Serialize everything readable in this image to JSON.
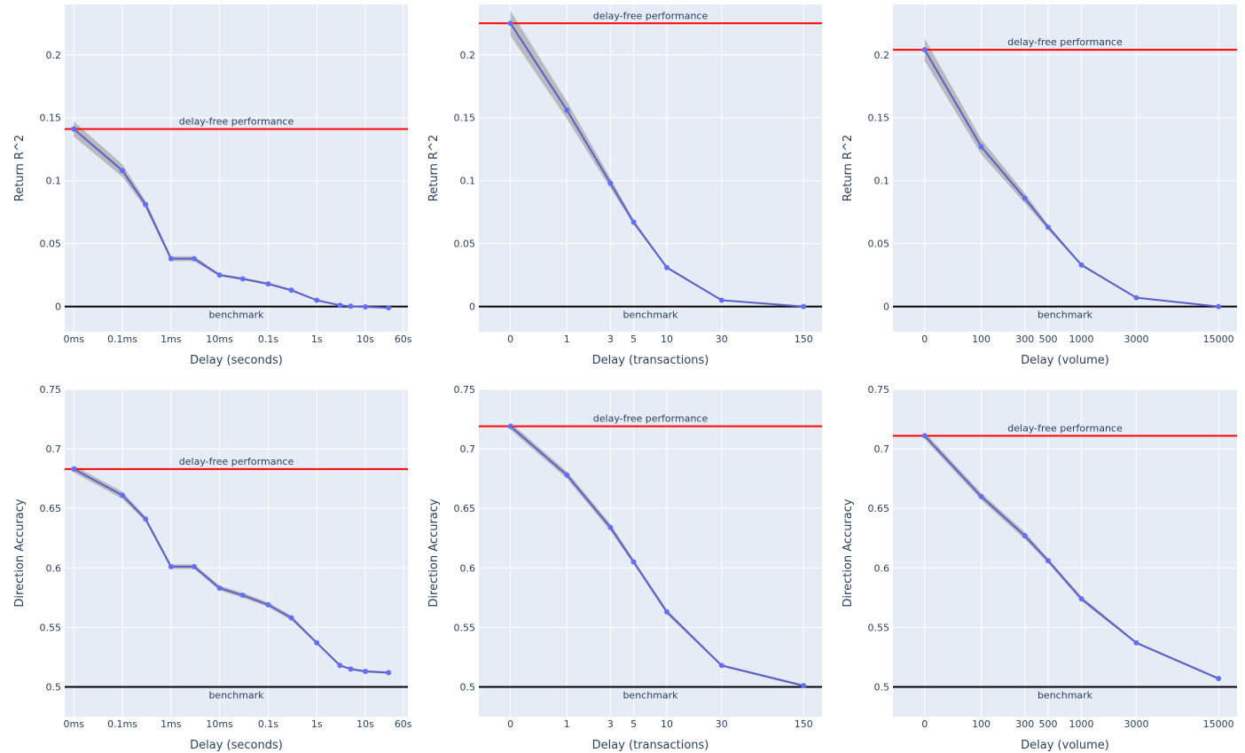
{
  "figure": {
    "plot_bg": "#e5ecf6",
    "grid_color": "#ffffff",
    "line_color": "#5b5fc7",
    "marker_color": "#636efa",
    "band_color": "#9a9a9a",
    "delay_free_color": "#ff0000",
    "benchmark_color": "#000000",
    "text_color": "#2a3f5f"
  },
  "chart_data": [
    {
      "id": "r2-seconds",
      "type": "line",
      "xlabel": "Delay (seconds)",
      "ylabel": "Return R^2",
      "xscale": {
        "kind": "log",
        "offset": 0,
        "zero_as": 1e-05
      },
      "xlim": [
        6.5e-06,
        75
      ],
      "ylim": [
        -0.02,
        0.24
      ],
      "grid": true,
      "xticks": [
        {
          "value": 0,
          "label": "0ms"
        },
        {
          "value": 0.0001,
          "label": "0.1ms"
        },
        {
          "value": 0.001,
          "label": "1ms"
        },
        {
          "value": 0.01,
          "label": "10ms"
        },
        {
          "value": 0.1,
          "label": "0.1s"
        },
        {
          "value": 1,
          "label": "1s"
        },
        {
          "value": 10,
          "label": "10s"
        },
        {
          "value": 60,
          "label": "60s"
        }
      ],
      "yticks": [
        {
          "value": 0,
          "label": "0"
        },
        {
          "value": 0.05,
          "label": "0.05"
        },
        {
          "value": 0.1,
          "label": "0.1"
        },
        {
          "value": 0.15,
          "label": "0.15"
        },
        {
          "value": 0.2,
          "label": "0.2"
        }
      ],
      "x": [
        0,
        0.0001,
        0.0003,
        0.001,
        0.003,
        0.01,
        0.03,
        0.1,
        0.3,
        1,
        3,
        5,
        10,
        30
      ],
      "y": [
        0.141,
        0.108,
        0.081,
        0.038,
        0.038,
        0.025,
        0.022,
        0.018,
        0.013,
        0.005,
        0.001,
        0.0003,
        -0.0003,
        -0.001
      ],
      "band": [
        0.006,
        0.005,
        0.003,
        0.002,
        0.002,
        0.001,
        0.001,
        0.001,
        0.001,
        0.0005,
        0.0005,
        0.0005,
        0.0005,
        0.0005
      ],
      "delay_free": {
        "value": 0.141,
        "label": "delay-free performance"
      },
      "benchmark": {
        "value": 0,
        "label": "benchmark"
      }
    },
    {
      "id": "r2-transactions",
      "type": "line",
      "xlabel": "Delay (transactions)",
      "ylabel": "Return R^2",
      "xscale": {
        "kind": "log",
        "offset": 0.5
      },
      "xlim": [
        -0.23,
        215
      ],
      "ylim": [
        -0.02,
        0.24
      ],
      "grid": true,
      "xticks": [
        {
          "value": 0,
          "label": "0"
        },
        {
          "value": 1,
          "label": "1"
        },
        {
          "value": 3,
          "label": "3"
        },
        {
          "value": 5,
          "label": "5"
        },
        {
          "value": 10,
          "label": "10"
        },
        {
          "value": 30,
          "label": "30"
        },
        {
          "value": 150,
          "label": "150"
        }
      ],
      "yticks": [
        {
          "value": 0,
          "label": "0"
        },
        {
          "value": 0.05,
          "label": "0.05"
        },
        {
          "value": 0.1,
          "label": "0.1"
        },
        {
          "value": 0.15,
          "label": "0.15"
        },
        {
          "value": 0.2,
          "label": "0.2"
        }
      ],
      "x": [
        0,
        1,
        3,
        5,
        10,
        30,
        150
      ],
      "y": [
        0.225,
        0.156,
        0.098,
        0.067,
        0.031,
        0.005,
        0.0
      ],
      "band": [
        0.01,
        0.007,
        0.004,
        0.002,
        0.001,
        0.0005,
        0.0003
      ],
      "delay_free": {
        "value": 0.225,
        "label": "delay-free performance"
      },
      "benchmark": {
        "value": 0,
        "label": "benchmark"
      }
    },
    {
      "id": "r2-volume",
      "type": "line",
      "xlabel": "Delay (volume)",
      "ylabel": "Return R^2",
      "xscale": {
        "kind": "log",
        "offset": 50
      },
      "xlim": [
        -23,
        21500
      ],
      "ylim": [
        -0.02,
        0.24
      ],
      "grid": true,
      "xticks": [
        {
          "value": 0,
          "label": "0"
        },
        {
          "value": 100,
          "label": "100"
        },
        {
          "value": 300,
          "label": "300"
        },
        {
          "value": 500,
          "label": "500"
        },
        {
          "value": 1000,
          "label": "1000"
        },
        {
          "value": 3000,
          "label": "3000"
        },
        {
          "value": 15000,
          "label": "15000"
        }
      ],
      "yticks": [
        {
          "value": 0,
          "label": "0"
        },
        {
          "value": 0.05,
          "label": "0.05"
        },
        {
          "value": 0.1,
          "label": "0.1"
        },
        {
          "value": 0.15,
          "label": "0.15"
        },
        {
          "value": 0.2,
          "label": "0.2"
        }
      ],
      "x": [
        0,
        100,
        300,
        500,
        1000,
        3000,
        15000
      ],
      "y": [
        0.204,
        0.127,
        0.086,
        0.063,
        0.033,
        0.007,
        0.0
      ],
      "band": [
        0.009,
        0.006,
        0.004,
        0.002,
        0.001,
        0.0005,
        0.0003
      ],
      "delay_free": {
        "value": 0.204,
        "label": "delay-free performance"
      },
      "benchmark": {
        "value": 0,
        "label": "benchmark"
      }
    },
    {
      "id": "acc-seconds",
      "type": "line",
      "xlabel": "Delay (seconds)",
      "ylabel": "Direction Accuracy",
      "xscale": {
        "kind": "log",
        "offset": 0,
        "zero_as": 1e-05
      },
      "xlim": [
        6.5e-06,
        75
      ],
      "ylim": [
        0.475,
        0.75
      ],
      "grid": true,
      "xticks": [
        {
          "value": 0,
          "label": "0ms"
        },
        {
          "value": 0.0001,
          "label": "0.1ms"
        },
        {
          "value": 0.001,
          "label": "1ms"
        },
        {
          "value": 0.01,
          "label": "10ms"
        },
        {
          "value": 0.1,
          "label": "0.1s"
        },
        {
          "value": 1,
          "label": "1s"
        },
        {
          "value": 10,
          "label": "10s"
        },
        {
          "value": 60,
          "label": "60s"
        }
      ],
      "yticks": [
        {
          "value": 0.5,
          "label": "0.5"
        },
        {
          "value": 0.55,
          "label": "0.55"
        },
        {
          "value": 0.6,
          "label": "0.6"
        },
        {
          "value": 0.65,
          "label": "0.65"
        },
        {
          "value": 0.7,
          "label": "0.7"
        },
        {
          "value": 0.75,
          "label": "0.75"
        }
      ],
      "x": [
        0,
        0.0001,
        0.0003,
        0.001,
        0.003,
        0.01,
        0.03,
        0.1,
        0.3,
        1,
        3,
        5,
        10,
        30
      ],
      "y": [
        0.683,
        0.661,
        0.641,
        0.601,
        0.601,
        0.583,
        0.577,
        0.569,
        0.558,
        0.537,
        0.518,
        0.515,
        0.513,
        0.512
      ],
      "band": [
        0.003,
        0.003,
        0.002,
        0.002,
        0.002,
        0.002,
        0.002,
        0.002,
        0.002,
        0.001,
        0.001,
        0.001,
        0.001,
        0.001
      ],
      "delay_free": {
        "value": 0.683,
        "label": "delay-free performance"
      },
      "benchmark": {
        "value": 0.5,
        "label": "benchmark"
      }
    },
    {
      "id": "acc-transactions",
      "type": "line",
      "xlabel": "Delay (transactions)",
      "ylabel": "Direction Accuracy",
      "xscale": {
        "kind": "log",
        "offset": 0.5
      },
      "xlim": [
        -0.23,
        215
      ],
      "ylim": [
        0.475,
        0.75
      ],
      "grid": true,
      "xticks": [
        {
          "value": 0,
          "label": "0"
        },
        {
          "value": 1,
          "label": "1"
        },
        {
          "value": 3,
          "label": "3"
        },
        {
          "value": 5,
          "label": "5"
        },
        {
          "value": 10,
          "label": "10"
        },
        {
          "value": 30,
          "label": "30"
        },
        {
          "value": 150,
          "label": "150"
        }
      ],
      "yticks": [
        {
          "value": 0.5,
          "label": "0.5"
        },
        {
          "value": 0.55,
          "label": "0.55"
        },
        {
          "value": 0.6,
          "label": "0.6"
        },
        {
          "value": 0.65,
          "label": "0.65"
        },
        {
          "value": 0.7,
          "label": "0.7"
        },
        {
          "value": 0.75,
          "label": "0.75"
        }
      ],
      "x": [
        0,
        1,
        3,
        5,
        10,
        30,
        150
      ],
      "y": [
        0.719,
        0.678,
        0.634,
        0.605,
        0.563,
        0.518,
        0.501
      ],
      "band": [
        0.003,
        0.003,
        0.003,
        0.002,
        0.002,
        0.001,
        0.001
      ],
      "delay_free": {
        "value": 0.719,
        "label": "delay-free performance"
      },
      "benchmark": {
        "value": 0.5,
        "label": "benchmark"
      }
    },
    {
      "id": "acc-volume",
      "type": "line",
      "xlabel": "Delay (volume)",
      "ylabel": "Direction Accuracy",
      "xscale": {
        "kind": "log",
        "offset": 50
      },
      "xlim": [
        -23,
        21500
      ],
      "ylim": [
        0.475,
        0.75
      ],
      "grid": true,
      "xticks": [
        {
          "value": 0,
          "label": "0"
        },
        {
          "value": 100,
          "label": "100"
        },
        {
          "value": 300,
          "label": "300"
        },
        {
          "value": 500,
          "label": "500"
        },
        {
          "value": 1000,
          "label": "1000"
        },
        {
          "value": 3000,
          "label": "3000"
        },
        {
          "value": 15000,
          "label": "15000"
        }
      ],
      "yticks": [
        {
          "value": 0.5,
          "label": "0.5"
        },
        {
          "value": 0.55,
          "label": "0.55"
        },
        {
          "value": 0.6,
          "label": "0.6"
        },
        {
          "value": 0.65,
          "label": "0.65"
        },
        {
          "value": 0.7,
          "label": "0.7"
        },
        {
          "value": 0.75,
          "label": "0.75"
        }
      ],
      "x": [
        0,
        100,
        300,
        500,
        1000,
        3000,
        15000
      ],
      "y": [
        0.711,
        0.66,
        0.627,
        0.606,
        0.574,
        0.537,
        0.507
      ],
      "band": [
        0.003,
        0.003,
        0.003,
        0.002,
        0.002,
        0.001,
        0.001
      ],
      "delay_free": {
        "value": 0.711,
        "label": "delay-free performance"
      },
      "benchmark": {
        "value": 0.5,
        "label": "benchmark"
      }
    }
  ]
}
